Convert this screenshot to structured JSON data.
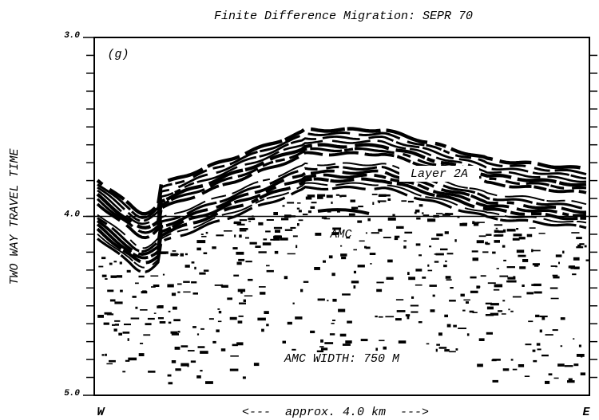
{
  "figure": {
    "title": "Finite Difference Migration: SEPR 70",
    "panel_label": "(g)",
    "y_label": "TWO WAY TRAVEL TIME",
    "ylim": [
      3.0,
      5.0
    ],
    "yticks": [
      {
        "value": 3.0,
        "label": "3.0"
      },
      {
        "value": 4.0,
        "label": "4.0"
      },
      {
        "value": 5.0,
        "label": "5.0"
      }
    ],
    "x_left": "W",
    "x_right": "E",
    "x_center": "<---  approx. 4.0 km  --->",
    "annotations": [
      "Layer 2A",
      "AMC",
      "AMC WIDTH: 750 M"
    ]
  }
}
